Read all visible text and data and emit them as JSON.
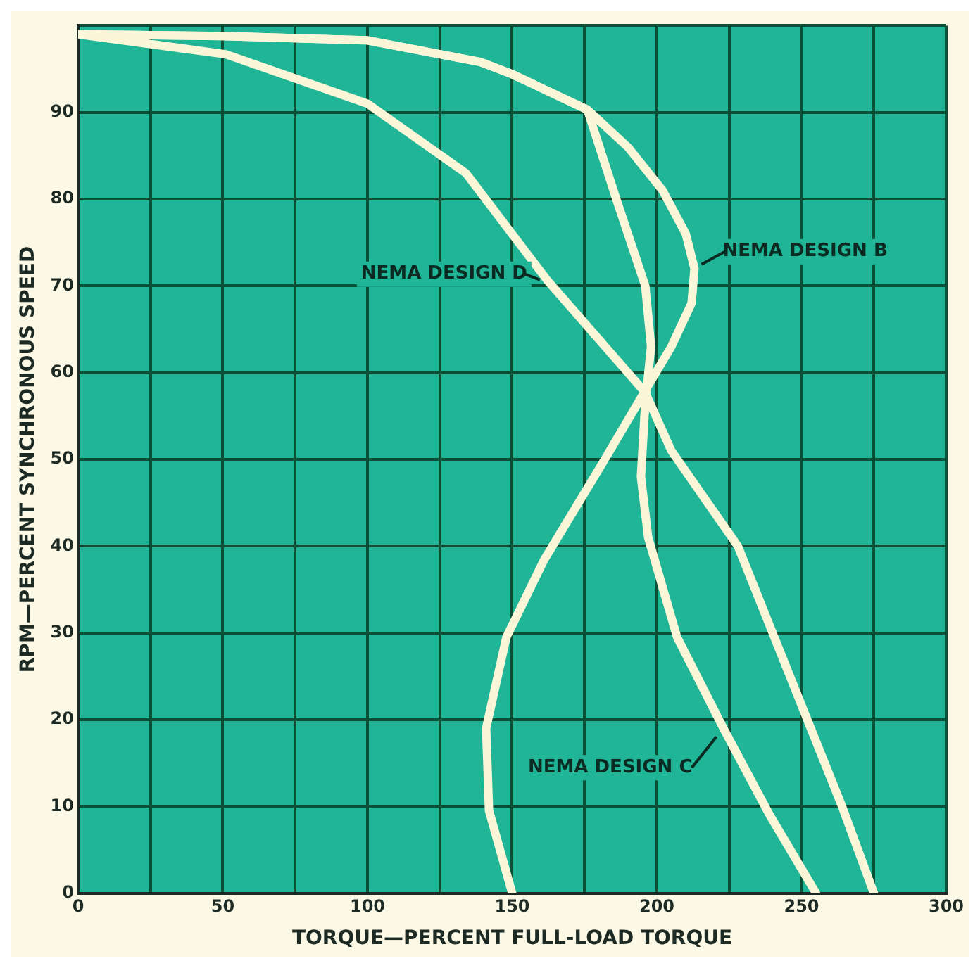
{
  "chart_data": {
    "type": "line",
    "xlabel": "TORQUE—PERCENT FULL-LOAD TORQUE",
    "ylabel": "RPM—PERCENT SYNCHRONOUS SPEED",
    "xlim": [
      0,
      300
    ],
    "ylim": [
      0,
      100
    ],
    "xticks": [
      0,
      {
        "value": 25,
        "label": null
      },
      50,
      {
        "value": 75,
        "label": null
      },
      100,
      {
        "value": 125,
        "label": null
      },
      150,
      {
        "value": 175,
        "label": null
      },
      200,
      {
        "value": 225,
        "label": null
      },
      250,
      {
        "value": 275,
        "label": null
      },
      300
    ],
    "yticks": [
      0,
      10,
      20,
      30,
      40,
      50,
      60,
      70,
      80,
      90,
      {
        "value": 100,
        "label": null
      }
    ],
    "grid": true,
    "legend": false,
    "marker": "none",
    "line_style": "solid",
    "series": [
      {
        "name": "NEMA DESIGN D",
        "color": "#fbf6d8",
        "x": [
          0,
          51,
          100,
          134,
          162,
          196,
          205,
          228,
          240,
          252,
          264,
          275
        ],
        "values": [
          99,
          96.7,
          91,
          83,
          70.7,
          57.7,
          51,
          40,
          30,
          20,
          10,
          0
        ]
      },
      {
        "name": "NEMA DESIGN B",
        "color": "#fbf6d8",
        "x": [
          0,
          50,
          100,
          139,
          150,
          176,
          190,
          202,
          210,
          213,
          212,
          205,
          197,
          182,
          161,
          148,
          141,
          142,
          150
        ],
        "values": [
          99,
          98.8,
          98.3,
          95.8,
          94.4,
          90.3,
          86,
          81,
          76,
          72,
          68,
          63,
          58.5,
          50,
          38.4,
          29.5,
          19,
          9.5,
          0
        ]
      },
      {
        "name": "NEMA DESIGN C",
        "color": "#fbf6d8",
        "x": [
          0,
          50,
          100,
          139,
          150,
          176,
          186,
          196,
          198,
          196,
          194.5,
          197,
          207,
          223,
          239,
          255
        ],
        "values": [
          99,
          98.8,
          98.3,
          95.8,
          94.4,
          90.3,
          80,
          70,
          63,
          56.5,
          48,
          41,
          29.5,
          19,
          9,
          0
        ]
      }
    ]
  }
}
